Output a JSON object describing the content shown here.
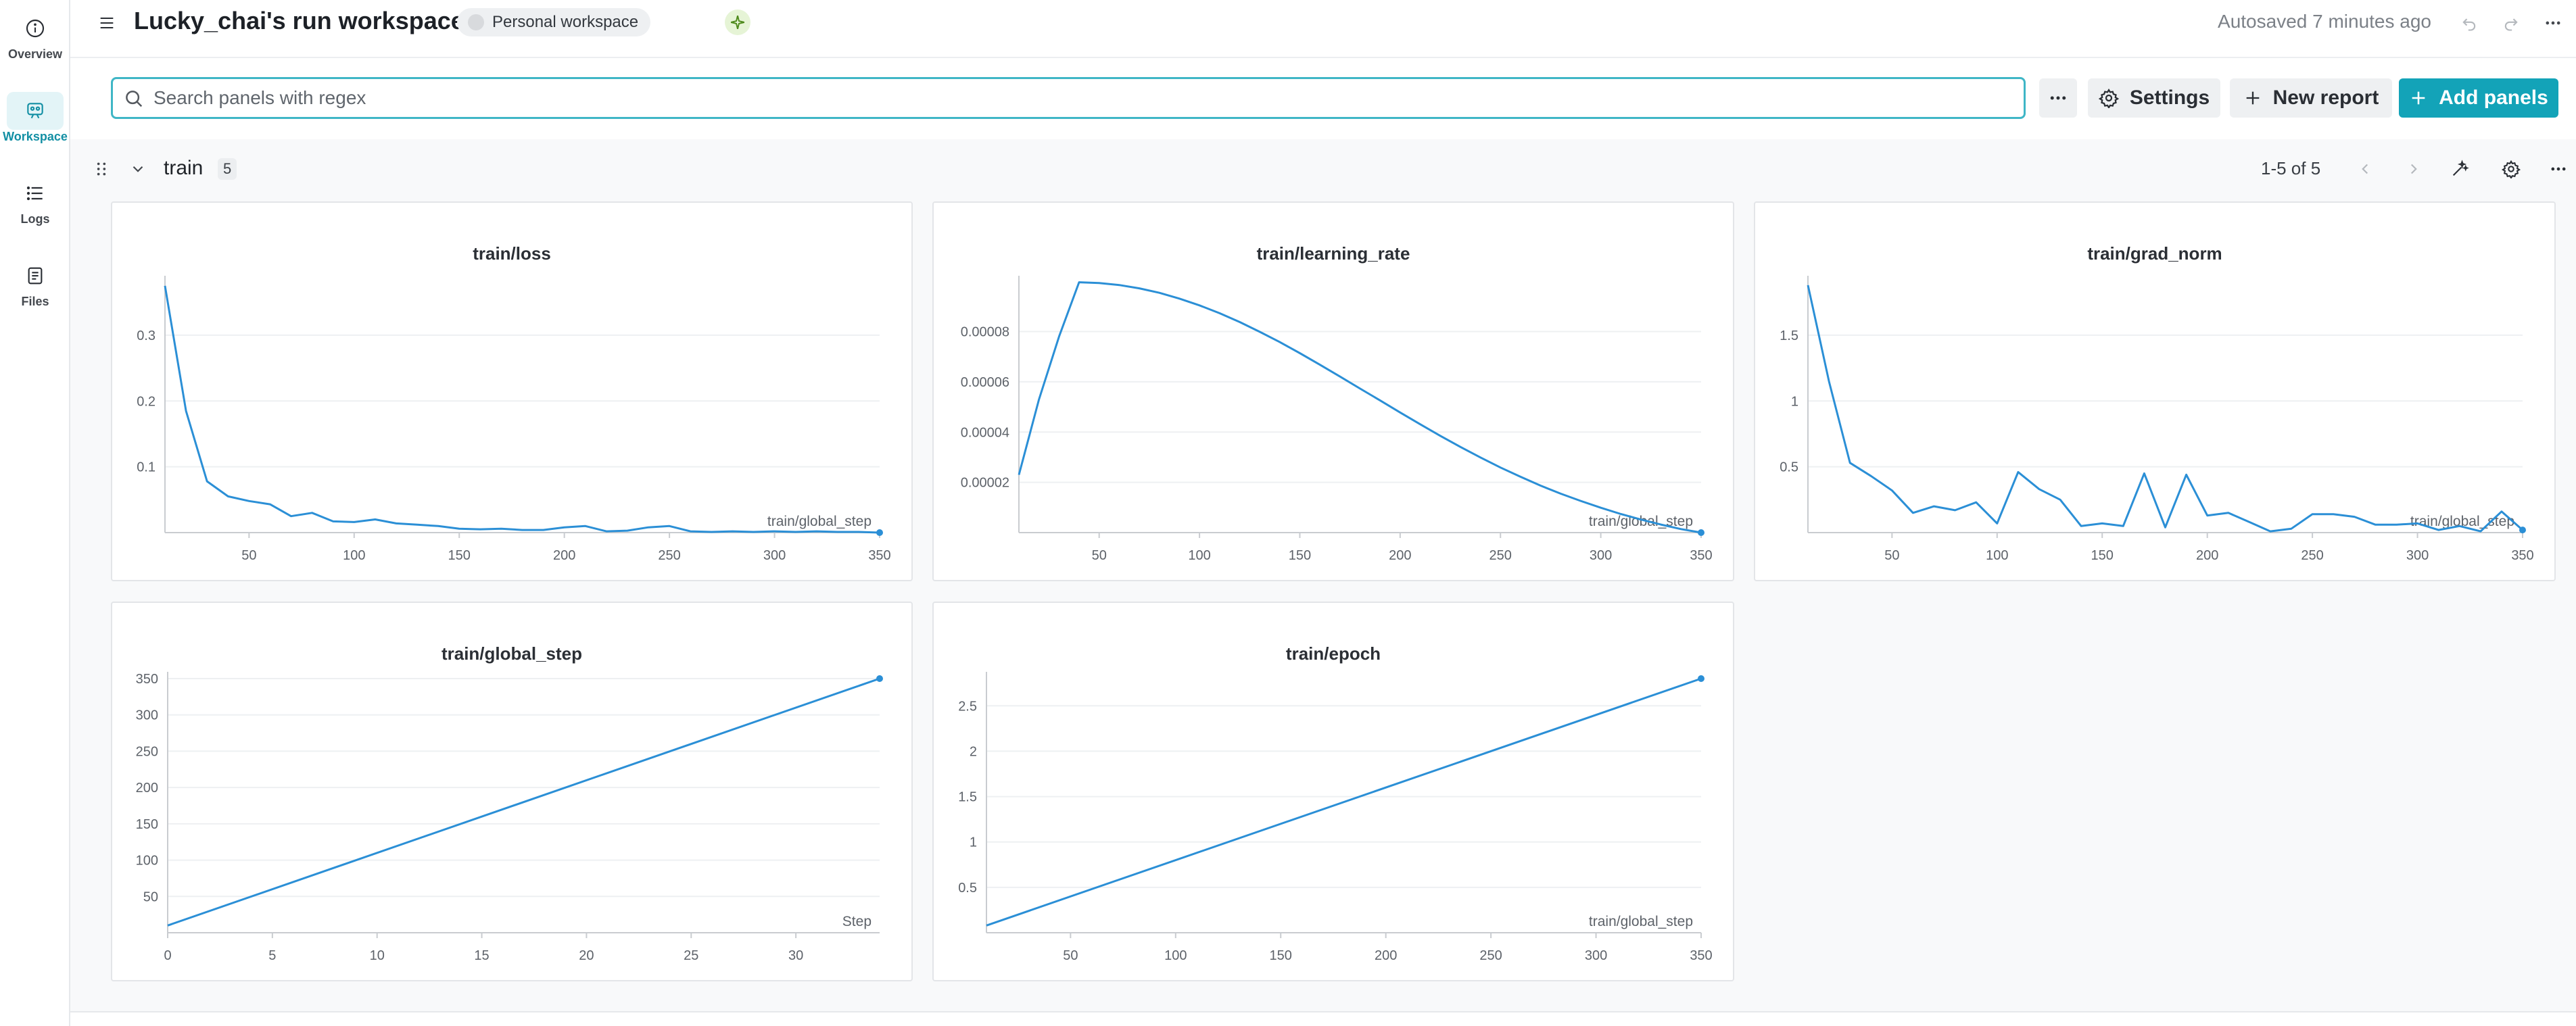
{
  "rail": {
    "items": [
      {
        "label": "Overview",
        "icon": "info-icon"
      },
      {
        "label": "Workspace",
        "icon": "workspace-icon"
      },
      {
        "label": "Logs",
        "icon": "list-icon"
      },
      {
        "label": "Files",
        "icon": "file-icon"
      }
    ]
  },
  "header": {
    "title": "Lucky_chai's run workspace",
    "workspace_pill": "Personal workspace",
    "autosave": "Autosaved 7 minutes ago"
  },
  "toolbar": {
    "search_placeholder": "Search panels with regex",
    "settings_label": "Settings",
    "new_report_label": "New report",
    "add_panels_label": "Add panels"
  },
  "section": {
    "title": "train",
    "count": "5",
    "pagination": "1-5 of 5"
  },
  "colors": {
    "accent": "#13a3b8",
    "line": "#2b8fd6",
    "search_border": "#3fb6c6"
  },
  "chart_data": [
    {
      "type": "line",
      "title": "train/loss",
      "xlabel": "train/global_step",
      "xlim": [
        10,
        350
      ],
      "ylim": [
        0,
        0.38
      ],
      "xticks": [
        50,
        100,
        150,
        200,
        250,
        300,
        350
      ],
      "yticks": [
        0.1,
        0.2,
        0.3
      ],
      "ytick_labels": [
        "0.1",
        "0.2",
        "0.3"
      ],
      "series": [
        {
          "x": [
            10,
            20,
            30,
            40,
            50,
            60,
            70,
            80,
            90,
            100,
            110,
            120,
            130,
            140,
            150,
            160,
            170,
            180,
            190,
            200,
            210,
            220,
            230,
            240,
            250,
            260,
            270,
            280,
            290,
            300,
            310,
            320,
            330,
            340,
            350
          ],
          "y": [
            0.375,
            0.185,
            0.078,
            0.055,
            0.048,
            0.043,
            0.025,
            0.03,
            0.017,
            0.016,
            0.02,
            0.014,
            0.012,
            0.01,
            0.006,
            0.005,
            0.006,
            0.004,
            0.004,
            0.008,
            0.01,
            0.002,
            0.003,
            0.008,
            0.01,
            0.002,
            0.001,
            0.002,
            0.001,
            0.002,
            0.001,
            0.002,
            0.001,
            0.001,
            0.0
          ]
        }
      ]
    },
    {
      "type": "line",
      "title": "train/learning_rate",
      "xlabel": "train/global_step",
      "xlim": [
        10,
        350
      ],
      "ylim": [
        0,
        9.95e-05
      ],
      "xticks": [
        50,
        100,
        150,
        200,
        250,
        300,
        350
      ],
      "yticks": [
        2e-05,
        4e-05,
        6e-05,
        8e-05
      ],
      "ytick_labels": [
        "0.00002",
        "0.00004",
        "0.00006",
        "0.00008"
      ],
      "series": [
        {
          "x": [
            10,
            20,
            30,
            40,
            50,
            60,
            70,
            80,
            90,
            100,
            110,
            120,
            130,
            140,
            150,
            160,
            170,
            180,
            190,
            200,
            210,
            220,
            230,
            240,
            250,
            260,
            270,
            280,
            290,
            300,
            310,
            320,
            330,
            340,
            350
          ],
          "y": [
            2.3e-05,
            5.3e-05,
            7.8e-05,
            9.96e-05,
            9.93e-05,
            9.85e-05,
            9.72e-05,
            9.54e-05,
            9.31e-05,
            9.04e-05,
            8.73e-05,
            8.38e-05,
            7.99e-05,
            7.58e-05,
            7.14e-05,
            6.68e-05,
            6.21e-05,
            5.73e-05,
            5.26e-05,
            4.78e-05,
            4.31e-05,
            3.85e-05,
            3.41e-05,
            2.99e-05,
            2.59e-05,
            2.22e-05,
            1.87e-05,
            1.55e-05,
            1.26e-05,
            9.9e-06,
            7.4e-06,
            5.2e-06,
            3.2e-06,
            1.4e-06,
            0.0
          ]
        }
      ]
    },
    {
      "type": "line",
      "title": "train/grad_norm",
      "xlabel": "train/global_step",
      "xlim": [
        10,
        350
      ],
      "ylim": [
        0,
        1.9
      ],
      "xticks": [
        50,
        100,
        150,
        200,
        250,
        300,
        350
      ],
      "yticks": [
        0.5,
        1,
        1.5
      ],
      "ytick_labels": [
        "0.5",
        "1",
        "1.5"
      ],
      "series": [
        {
          "x": [
            10,
            20,
            30,
            40,
            50,
            60,
            70,
            80,
            90,
            100,
            110,
            120,
            130,
            140,
            150,
            160,
            170,
            180,
            190,
            200,
            210,
            220,
            230,
            240,
            250,
            260,
            270,
            280,
            290,
            300,
            310,
            320,
            330,
            340,
            350
          ],
          "y": [
            1.88,
            1.15,
            0.53,
            0.43,
            0.32,
            0.15,
            0.2,
            0.17,
            0.23,
            0.07,
            0.46,
            0.33,
            0.25,
            0.05,
            0.07,
            0.05,
            0.45,
            0.04,
            0.44,
            0.13,
            0.15,
            0.08,
            0.01,
            0.03,
            0.14,
            0.14,
            0.12,
            0.06,
            0.06,
            0.07,
            0.02,
            0.05,
            0.01,
            0.16,
            0.02
          ]
        }
      ]
    },
    {
      "type": "line",
      "title": "train/global_step",
      "xlabel": "Step",
      "xlim": [
        0,
        34
      ],
      "ylim": [
        0,
        350
      ],
      "xticks": [
        0,
        5,
        10,
        15,
        20,
        25,
        30
      ],
      "yticks": [
        50,
        100,
        150,
        200,
        250,
        300,
        350
      ],
      "ytick_labels": [
        "50",
        "100",
        "150",
        "200",
        "250",
        "300",
        "350"
      ],
      "series": [
        {
          "x": [
            0,
            34
          ],
          "y": [
            10,
            350
          ]
        }
      ]
    },
    {
      "type": "line",
      "title": "train/epoch",
      "xlabel": "train/global_step",
      "xlim": [
        10,
        350
      ],
      "ylim": [
        0,
        2.8
      ],
      "xticks": [
        50,
        100,
        150,
        200,
        250,
        300,
        350
      ],
      "yticks": [
        0.5,
        1,
        1.5,
        2,
        2.5
      ],
      "ytick_labels": [
        "0.5",
        "1",
        "1.5",
        "2",
        "2.5"
      ],
      "series": [
        {
          "x": [
            10,
            350
          ],
          "y": [
            0.08,
            2.8
          ]
        }
      ]
    }
  ]
}
